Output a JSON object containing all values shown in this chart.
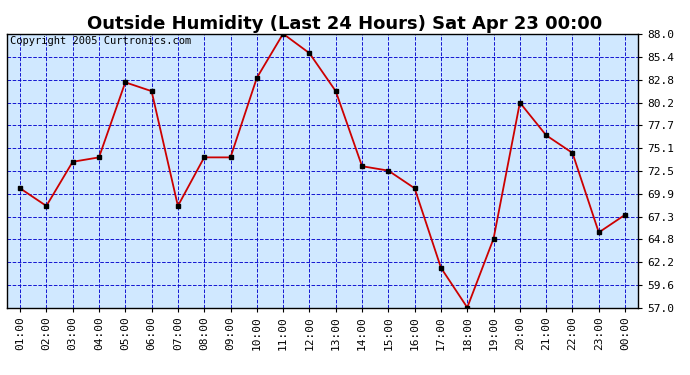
{
  "title": "Outside Humidity (Last 24 Hours) Sat Apr 23 00:00",
  "copyright": "Copyright 2005 Curtronics.com",
  "x_labels": [
    "01:00",
    "02:00",
    "03:00",
    "04:00",
    "05:00",
    "06:00",
    "07:00",
    "08:00",
    "09:00",
    "10:00",
    "11:00",
    "12:00",
    "13:00",
    "14:00",
    "15:00",
    "16:00",
    "17:00",
    "18:00",
    "19:00",
    "20:00",
    "21:00",
    "22:00",
    "23:00",
    "00:00"
  ],
  "y_values": [
    70.5,
    68.5,
    73.5,
    74.0,
    82.5,
    81.5,
    68.5,
    74.0,
    74.0,
    83.0,
    88.0,
    85.8,
    81.5,
    73.0,
    72.5,
    70.5,
    61.5,
    57.0,
    64.8,
    80.2,
    76.5,
    74.5,
    65.5,
    67.5
  ],
  "line_color": "#cc0000",
  "marker_color": "#000000",
  "bg_color": "#d0e8ff",
  "outer_bg": "#ffffff",
  "grid_color_dash": "#0000cc",
  "grid_color_solid": "#0000cc",
  "yticks": [
    57.0,
    59.6,
    62.2,
    64.8,
    67.3,
    69.9,
    72.5,
    75.1,
    77.7,
    80.2,
    82.8,
    85.4,
    88.0
  ],
  "ylim": [
    57.0,
    88.0
  ],
  "title_fontsize": 13,
  "tick_fontsize": 8,
  "copyright_fontsize": 7.5
}
